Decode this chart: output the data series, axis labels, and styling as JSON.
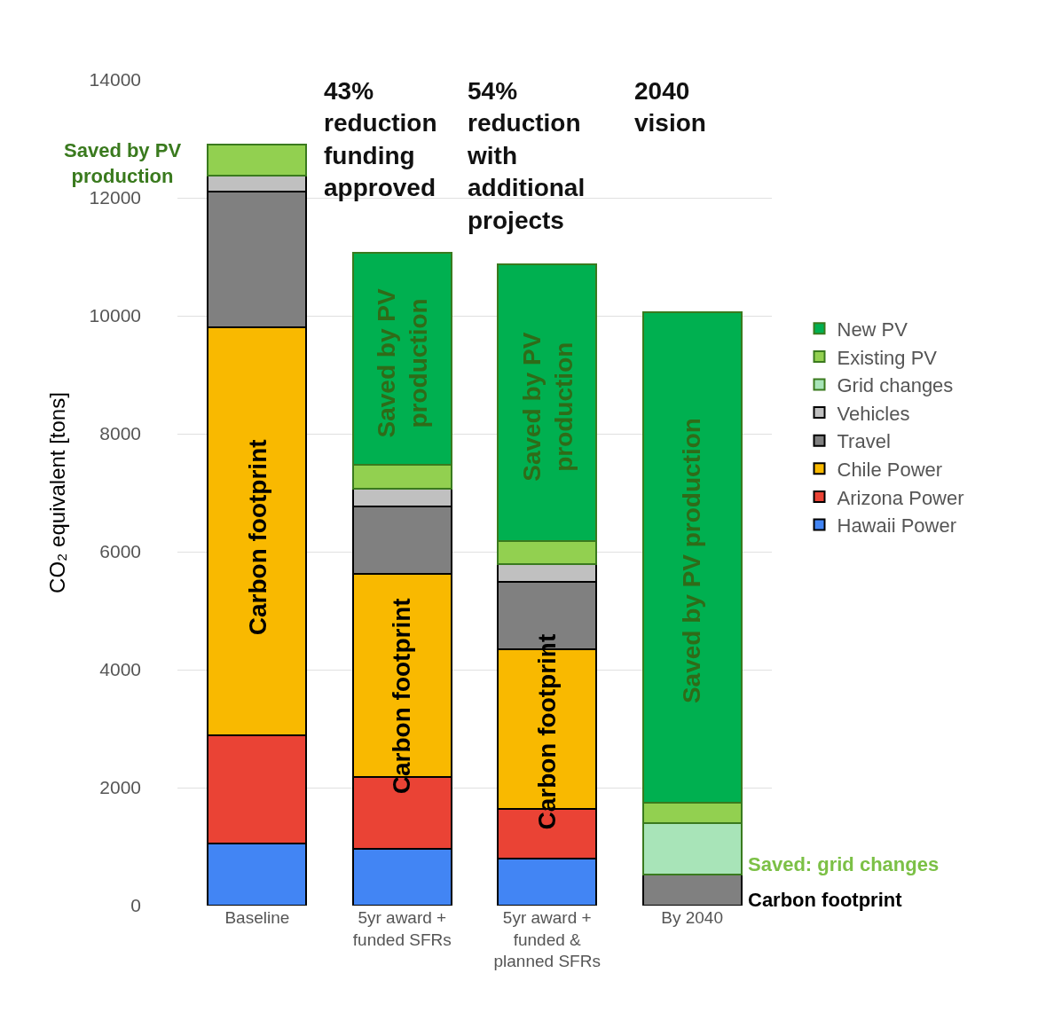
{
  "chart_data": {
    "type": "bar",
    "stacked": true,
    "ylabel": "CO₂ equivalent [tons]",
    "categories": [
      "Baseline",
      "5yr award +\nfunded SFRs",
      "5yr award +\nfunded &\nplanned SFRs",
      "By 2040"
    ],
    "ylim": [
      0,
      14000
    ],
    "yticks": [
      0,
      2000,
      4000,
      6000,
      8000,
      10000,
      12000,
      14000
    ],
    "grid": "y",
    "legend": "right",
    "series": [
      {
        "name": "Hawaii Power",
        "color": "#4285f4",
        "values": [
          1050,
          960,
          800,
          null
        ]
      },
      {
        "name": "Arizona Power",
        "color": "#ea4335",
        "values": [
          1840,
          1220,
          840,
          null
        ]
      },
      {
        "name": "Chile Power",
        "color": "#f9b900",
        "values": [
          6910,
          3450,
          2710,
          null
        ]
      },
      {
        "name": "Travel",
        "color": "#808080",
        "values": [
          2300,
          1140,
          1140,
          530
        ]
      },
      {
        "name": "Vehicles",
        "color": "#c0c0c0",
        "values": [
          280,
          300,
          300,
          null
        ]
      },
      {
        "name": "Grid changes",
        "color": "#a8e4b8",
        "values": [
          null,
          null,
          null,
          870
        ]
      },
      {
        "name": "Existing PV",
        "color": "#92d050",
        "values": [
          520,
          400,
          390,
          340
        ]
      },
      {
        "name": "New PV",
        "color": "#00b050",
        "values": [
          null,
          3600,
          4690,
          8320
        ]
      }
    ],
    "annotations": [
      "43%\nreduction\nfunding\napproved",
      "54%\nreduction\nwith\nadditional\nprojects",
      "2040\nvision",
      "Saved by PV\nproduction",
      "Saved: grid changes",
      "Carbon footprint",
      "Carbon footprint",
      "Carbon footprint",
      "Carbon footprint",
      "Saved by PV\nproduction",
      "Saved by PV\nproduction",
      "Saved by PV production"
    ]
  }
}
